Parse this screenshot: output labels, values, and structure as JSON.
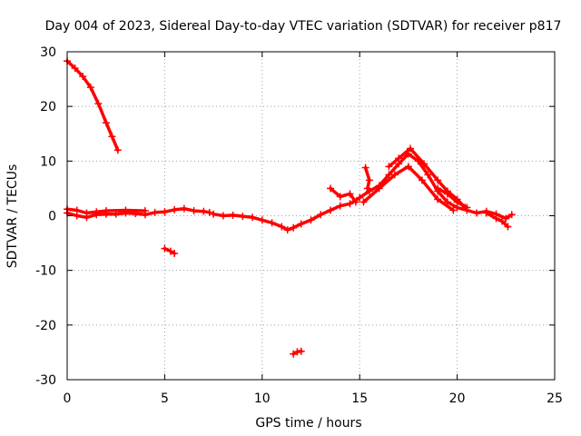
{
  "chart_data": {
    "type": "scatter",
    "title": "Day 004 of 2023, Sidereal Day-to-day VTEC variation (SDTVAR) for receiver p817",
    "xlabel": "GPS time / hours",
    "ylabel": "SDTVAR / TECUs",
    "xlim": [
      0,
      25
    ],
    "ylim": [
      -30,
      30
    ],
    "xticks": [
      0,
      5,
      10,
      15,
      20,
      25
    ],
    "yticks": [
      -30,
      -20,
      -10,
      0,
      10,
      20,
      30
    ],
    "grid": true,
    "series": [
      {
        "name": "SDTVAR",
        "color": "#ff0000",
        "segments": [
          [
            [
              0.0,
              28.3
            ],
            [
              0.4,
              27.0
            ],
            [
              0.8,
              25.5
            ],
            [
              1.2,
              23.5
            ],
            [
              1.6,
              20.5
            ],
            [
              2.0,
              17.0
            ],
            [
              2.3,
              14.5
            ],
            [
              2.6,
              12.0
            ]
          ],
          [
            [
              0.0,
              0.5
            ],
            [
              0.5,
              0.0
            ],
            [
              1.0,
              -0.3
            ],
            [
              1.5,
              0.2
            ],
            [
              2.0,
              0.3
            ],
            [
              2.5,
              0.3
            ],
            [
              3.0,
              0.5
            ],
            [
              3.5,
              0.4
            ],
            [
              4.0,
              0.2
            ],
            [
              4.5,
              0.6
            ],
            [
              5.0,
              0.7
            ],
            [
              5.5,
              1.1
            ],
            [
              6.0,
              1.3
            ],
            [
              6.5,
              0.9
            ],
            [
              7.0,
              0.8
            ],
            [
              7.3,
              0.6
            ]
          ],
          [
            [
              7.5,
              0.3
            ],
            [
              8.0,
              0.0
            ],
            [
              8.5,
              0.1
            ],
            [
              9.0,
              -0.1
            ],
            [
              9.5,
              -0.3
            ],
            [
              10.0,
              -0.8
            ],
            [
              10.5,
              -1.3
            ],
            [
              11.0,
              -2.0
            ],
            [
              11.3,
              -2.6
            ],
            [
              11.6,
              -2.2
            ],
            [
              12.0,
              -1.5
            ],
            [
              12.5,
              -0.8
            ],
            [
              13.0,
              0.2
            ],
            [
              13.5,
              1.0
            ],
            [
              14.0,
              1.8
            ],
            [
              14.5,
              2.2
            ],
            [
              15.0,
              3.3
            ],
            [
              15.5,
              4.5
            ],
            [
              16.0,
              5.5
            ],
            [
              16.5,
              7.5
            ],
            [
              17.0,
              9.5
            ],
            [
              17.5,
              11.3
            ],
            [
              18.0,
              10.0
            ],
            [
              18.5,
              7.5
            ],
            [
              19.0,
              4.5
            ],
            [
              19.5,
              2.5
            ],
            [
              20.0,
              1.5
            ],
            [
              20.5,
              1.0
            ],
            [
              21.0,
              0.5
            ],
            [
              21.5,
              0.8
            ],
            [
              22.0,
              0.3
            ],
            [
              22.5,
              -0.5
            ],
            [
              22.8,
              0.2
            ]
          ],
          [
            [
              0.0,
              1.2
            ],
            [
              0.5,
              1.0
            ],
            [
              1.0,
              0.5
            ],
            [
              1.5,
              0.7
            ],
            [
              2.0,
              0.9
            ],
            [
              3.0,
              1.0
            ],
            [
              4.0,
              0.9
            ]
          ],
          [
            [
              15.2,
              2.5
            ],
            [
              16.0,
              5.0
            ],
            [
              16.8,
              7.5
            ],
            [
              17.5,
              9.0
            ],
            [
              18.2,
              6.5
            ],
            [
              19.0,
              3.0
            ],
            [
              19.8,
              1.0
            ]
          ],
          [
            [
              16.5,
              9.0
            ],
            [
              17.0,
              10.5
            ],
            [
              17.6,
              12.3
            ],
            [
              18.3,
              9.5
            ],
            [
              19.0,
              6.5
            ],
            [
              19.5,
              4.5
            ],
            [
              20.0,
              3.0
            ],
            [
              20.4,
              1.5
            ]
          ],
          [
            [
              19.0,
              5.0
            ],
            [
              19.5,
              4.0
            ],
            [
              20.0,
              2.5
            ],
            [
              20.5,
              1.5
            ]
          ],
          [
            [
              13.5,
              5.0
            ],
            [
              14.0,
              3.5
            ],
            [
              14.5,
              4.0
            ],
            [
              14.8,
              2.5
            ]
          ],
          [
            [
              21.5,
              0.5
            ],
            [
              22.0,
              -0.5
            ],
            [
              22.3,
              -1.0
            ],
            [
              22.6,
              -2.0
            ]
          ],
          [
            [
              15.3,
              8.8
            ],
            [
              15.5,
              6.5
            ],
            [
              15.4,
              5.0
            ]
          ],
          [
            [
              5.0,
              -6.0
            ],
            [
              5.3,
              -6.5
            ],
            [
              5.5,
              -6.9
            ]
          ],
          [
            [
              11.6,
              -25.3
            ],
            [
              11.8,
              -24.9
            ],
            [
              12.0,
              -24.8
            ]
          ]
        ]
      }
    ]
  }
}
